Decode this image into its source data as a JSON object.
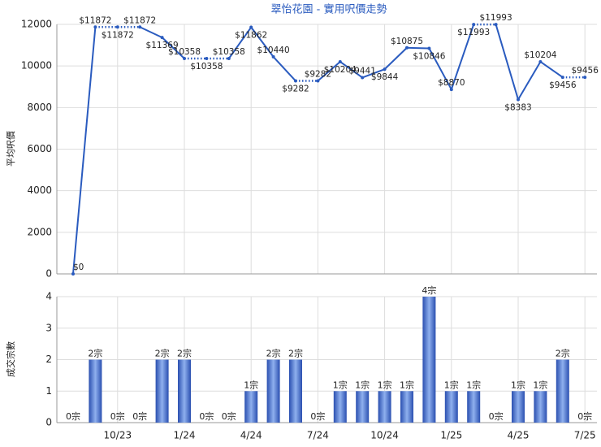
{
  "chart_data": [
    {
      "type": "line",
      "title": "翠怡花園 - 實用呎價走勢",
      "ylabel": "平均呎價",
      "color": "#2a5bbf",
      "values": [
        0,
        11872,
        11872,
        11872,
        11369,
        10358,
        10358,
        10358,
        11862,
        10440,
        9282,
        9282,
        10204,
        9441,
        9844,
        10875,
        10846,
        8870,
        11993,
        11993,
        8383,
        10204,
        9456,
        9456
      ],
      "value_labels": [
        "$0",
        "$11872",
        "$11872",
        "$11872",
        "$11369",
        "$10358",
        "$10358",
        "$10358",
        "$11862",
        "$10440",
        "$9282",
        "$9282",
        "$10204",
        "$9441",
        "$9844",
        "$10875",
        "$10846",
        "$8870",
        "$11993",
        "$11993",
        "$8383",
        "$10204",
        "$9456",
        "$9456"
      ],
      "ylim": [
        0,
        12000
      ],
      "yticks": [
        0,
        2000,
        4000,
        6000,
        8000,
        10000,
        12000
      ],
      "grid": true
    },
    {
      "type": "bar",
      "ylabel": "成交宗數",
      "color": "#3a64c8",
      "categories": [
        null,
        null,
        "10/23",
        null,
        null,
        "1/24",
        null,
        null,
        "4/24",
        null,
        null,
        "7/24",
        null,
        null,
        "10/24",
        null,
        null,
        "1/25",
        null,
        null,
        "4/25",
        null,
        null,
        "7/25"
      ],
      "values": [
        0,
        2,
        0,
        0,
        2,
        2,
        0,
        0,
        1,
        2,
        2,
        0,
        1,
        1,
        1,
        1,
        4,
        1,
        1,
        0,
        1,
        1,
        2,
        0
      ],
      "value_labels": [
        "0宗",
        "2宗",
        "0宗",
        "0宗",
        "2宗",
        "2宗",
        "0宗",
        "0宗",
        "1宗",
        "2宗",
        "2宗",
        "0宗",
        "1宗",
        "1宗",
        "1宗",
        "1宗",
        "4宗",
        "1宗",
        "1宗",
        "0宗",
        "1宗",
        "1宗",
        "2宗",
        "0宗"
      ],
      "ylim": [
        0,
        4
      ],
      "yticks": [
        0,
        1,
        2,
        3,
        4
      ],
      "grid": true
    }
  ]
}
